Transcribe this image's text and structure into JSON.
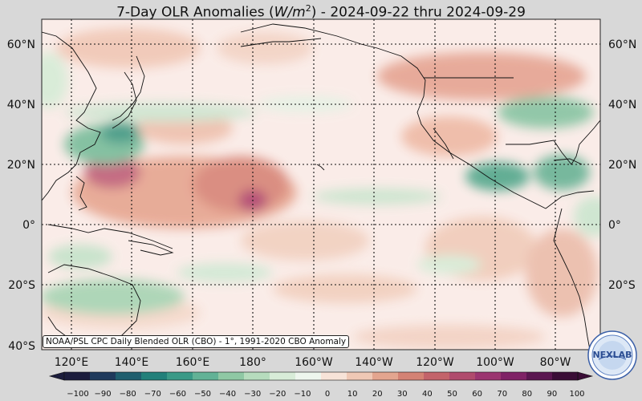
{
  "title": {
    "prefix": "7-Day OLR Anomalies (",
    "units_var": "W/m",
    "units_exp": "2",
    "suffix": ") - 2024-09-22 thru 2024-09-29"
  },
  "lat_labels": [
    "60°N",
    "40°N",
    "20°N",
    "0°",
    "20°S",
    "40°S"
  ],
  "lon_labels": [
    "120°E",
    "140°E",
    "160°E",
    "180°",
    "160°W",
    "140°W",
    "120°W",
    "100°W",
    "80°W"
  ],
  "credit": "NOAA/PSL CPC Daily Blended OLR (CBO) - 1°, 1991-2020 CBO Anomaly",
  "logo_text": "NEXLAB",
  "colorbar": {
    "ticks": [
      "−100",
      "−90",
      "−80",
      "−70",
      "−60",
      "−50",
      "−40",
      "−30",
      "−20",
      "−10",
      "0",
      "10",
      "20",
      "30",
      "40",
      "50",
      "60",
      "70",
      "80",
      "90",
      "100"
    ],
    "colors": [
      "#1c1d3d",
      "#1f3a5c",
      "#1f5e6e",
      "#22807a",
      "#3a9a87",
      "#62b296",
      "#8fc8a4",
      "#b6dcbd",
      "#d8ecd8",
      "#eef6ee",
      "#faf3ef",
      "#f7e3d8",
      "#efc8b5",
      "#e3a58f",
      "#d48274",
      "#c3636a",
      "#b04b6d",
      "#9b3570",
      "#7f2266",
      "#5a1650",
      "#3a0d36"
    ]
  }
}
